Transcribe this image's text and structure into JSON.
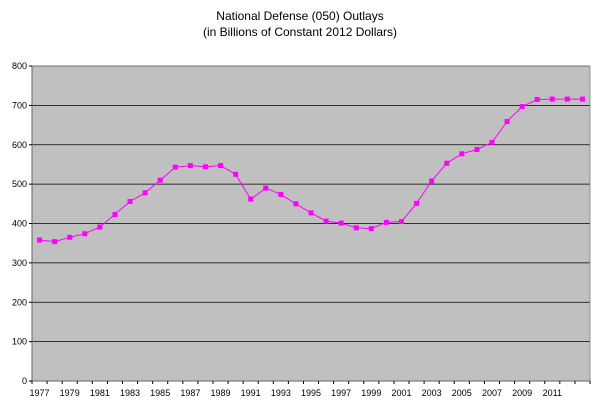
{
  "chart_data": {
    "type": "line",
    "title": "National Defense (050) Outlays",
    "subtitle": "(in Billions of Constant 2012 Dollars)",
    "xlabel": "",
    "ylabel": "",
    "ylim": [
      0,
      800
    ],
    "yticks": [
      0,
      100,
      200,
      300,
      400,
      500,
      600,
      700,
      800
    ],
    "xticks": [
      1977,
      1979,
      1981,
      1983,
      1985,
      1987,
      1989,
      1991,
      1993,
      1995,
      1997,
      1999,
      2001,
      2003,
      2005,
      2007,
      2009,
      2011
    ],
    "grid": true,
    "legend": "none",
    "plot_background": "#c0c0c0",
    "series_color": "#ff00ff",
    "x": [
      1977,
      1978,
      1979,
      1980,
      1981,
      1982,
      1983,
      1984,
      1985,
      1986,
      1987,
      1988,
      1989,
      1990,
      1991,
      1992,
      1993,
      1994,
      1995,
      1996,
      1997,
      1998,
      1999,
      2000,
      2001,
      2002,
      2003,
      2004,
      2005,
      2006,
      2007,
      2008,
      2009,
      2010,
      2011,
      2012,
      2013
    ],
    "series": [
      {
        "values": [
          358,
          354,
          365,
          374,
          391,
          423,
          456,
          478,
          510,
          543,
          547,
          544,
          547,
          525,
          462,
          490,
          474,
          450,
          427,
          406,
          401,
          389,
          387,
          403,
          405,
          451,
          508,
          553,
          577,
          588,
          606,
          659,
          697,
          715,
          716,
          716,
          716
        ]
      }
    ]
  }
}
